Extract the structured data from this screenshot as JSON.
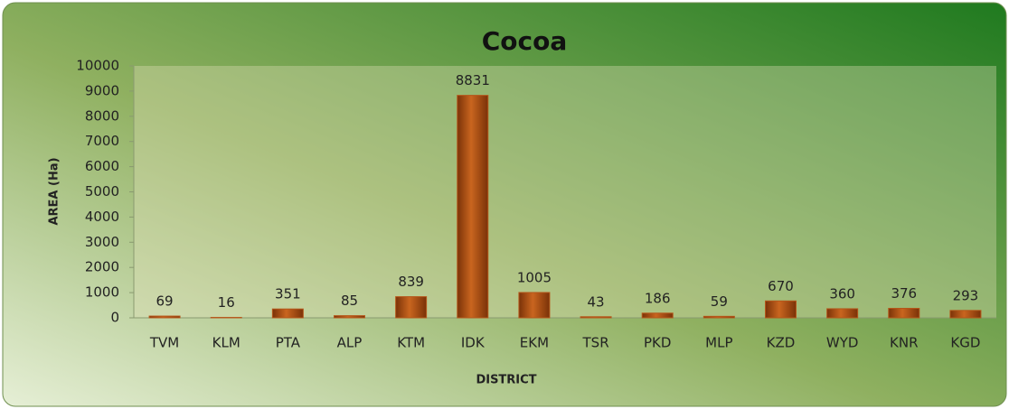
{
  "chart_data": {
    "type": "bar",
    "title": "Cocoa",
    "x_label": "DISTRICT",
    "y_label": "AREA (Ha)",
    "categories": [
      "TVM",
      "KLM",
      "PTA",
      "ALP",
      "KTM",
      "IDK",
      "EKM",
      "TSR",
      "PKD",
      "MLP",
      "KZD",
      "WYD",
      "KNR",
      "KGD"
    ],
    "values": [
      69,
      16,
      351,
      85,
      839,
      8831,
      1005,
      43,
      186,
      59,
      670,
      360,
      376,
      293
    ],
    "color": "#b5561a",
    "ylim": [
      0,
      10000
    ],
    "yticks": [
      0,
      1000,
      2000,
      3000,
      4000,
      5000,
      6000,
      7000,
      8000,
      9000,
      10000
    ],
    "grid": false
  }
}
